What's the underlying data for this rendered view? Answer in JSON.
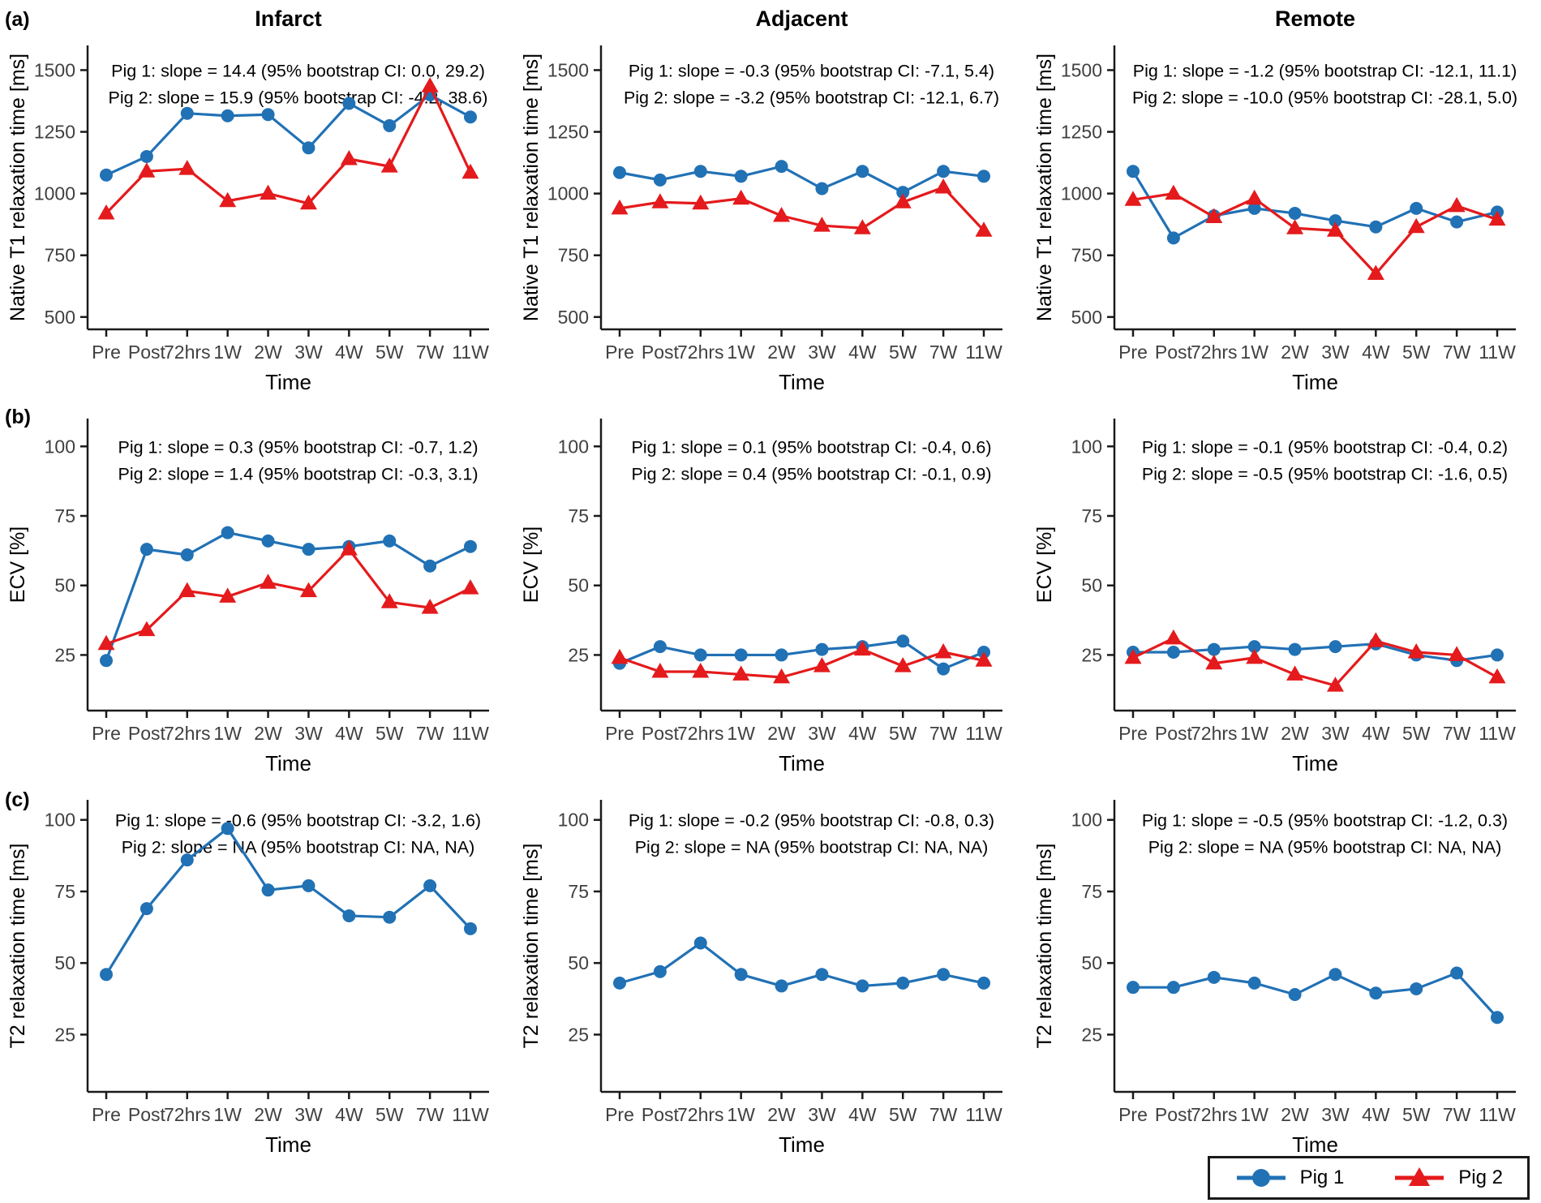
{
  "figure": {
    "panel_labels": [
      "(a)",
      "(b)",
      "(c)"
    ],
    "column_titles": [
      "Infarct",
      "Adjacent",
      "Remote"
    ],
    "colors": {
      "pig1_blue": "#2171B5",
      "pig2_red": "#E41A1C",
      "axis": "#1a1a1a",
      "tick_text": "#404040"
    },
    "legend": {
      "items": [
        {
          "label": "Pig 1",
          "marker": "circle",
          "color": "#2171B5"
        },
        {
          "label": "Pig 2",
          "marker": "triangle",
          "color": "#E41A1C"
        }
      ]
    }
  },
  "chart_data": {
    "type": "line",
    "categories": [
      "Pre",
      "Post",
      "72hrs",
      "1W",
      "2W",
      "3W",
      "4W",
      "5W",
      "7W",
      "11W"
    ],
    "xlabel": "Time",
    "grid": false,
    "charts": [
      {
        "panel": "a",
        "region": "Infarct",
        "title": "Infarct",
        "ylabel": "Native T1 relaxation time [ms]",
        "yticks": [
          500,
          750,
          1000,
          1250,
          1500
        ],
        "ylim": [
          450,
          1600
        ],
        "annotations": [
          "Pig 1: slope = 14.4 (95% bootstrap CI: 0.0, 29.2)",
          "Pig 2: slope = 15.9 (95% bootstrap CI: -4.2, 38.6)"
        ],
        "series": [
          {
            "name": "Pig 1",
            "marker": "circle",
            "color": "#2171B5",
            "values": [
              1075,
              1150,
              1325,
              1315,
              1320,
              1185,
              1365,
              1275,
              1400,
              1310
            ]
          },
          {
            "name": "Pig 2",
            "marker": "triangle",
            "color": "#E41A1C",
            "values": [
              920,
              1090,
              1100,
              970,
              1000,
              960,
              1140,
              1110,
              1435,
              1085
            ]
          }
        ]
      },
      {
        "panel": "a",
        "region": "Adjacent",
        "title": "Adjacent",
        "ylabel": "Native T1 relaxation time [ms]",
        "yticks": [
          500,
          750,
          1000,
          1250,
          1500
        ],
        "ylim": [
          450,
          1600
        ],
        "annotations": [
          "Pig 1: slope = -0.3 (95% bootstrap CI: -7.1, 5.4)",
          "Pig 2: slope = -3.2 (95% bootstrap CI: -12.1, 6.7)"
        ],
        "series": [
          {
            "name": "Pig 1",
            "marker": "circle",
            "color": "#2171B5",
            "values": [
              1085,
              1055,
              1090,
              1070,
              1110,
              1020,
              1090,
              1005,
              1090,
              1070
            ]
          },
          {
            "name": "Pig 2",
            "marker": "triangle",
            "color": "#E41A1C",
            "values": [
              940,
              965,
              960,
              980,
              910,
              870,
              860,
              965,
              1025,
              850
            ]
          }
        ]
      },
      {
        "panel": "a",
        "region": "Remote",
        "title": "Remote",
        "ylabel": "Native T1 relaxation time [ms]",
        "yticks": [
          500,
          750,
          1000,
          1250,
          1500
        ],
        "ylim": [
          450,
          1600
        ],
        "annotations": [
          "Pig 1: slope = -1.2 (95% bootstrap CI: -12.1, 11.1)",
          "Pig 2: slope = -10.0 (95% bootstrap CI: -28.1, 5.0)"
        ],
        "series": [
          {
            "name": "Pig 1",
            "marker": "circle",
            "color": "#2171B5",
            "values": [
              1090,
              820,
              910,
              940,
              920,
              890,
              865,
              940,
              885,
              925
            ]
          },
          {
            "name": "Pig 2",
            "marker": "triangle",
            "color": "#E41A1C",
            "values": [
              975,
              1000,
              905,
              980,
              860,
              850,
              675,
              865,
              950,
              895
            ]
          }
        ]
      },
      {
        "panel": "b",
        "region": "Infarct",
        "title": null,
        "ylabel": "ECV [%]",
        "yticks": [
          25,
          50,
          75,
          100
        ],
        "ylim": [
          5,
          110
        ],
        "annotations": [
          "Pig 1: slope = 0.3 (95% bootstrap CI: -0.7, 1.2)",
          "Pig 2: slope = 1.4 (95% bootstrap CI: -0.3, 3.1)"
        ],
        "series": [
          {
            "name": "Pig 1",
            "marker": "circle",
            "color": "#2171B5",
            "values": [
              23,
              63,
              61,
              69,
              66,
              63,
              64,
              66,
              57,
              64
            ]
          },
          {
            "name": "Pig 2",
            "marker": "triangle",
            "color": "#E41A1C",
            "values": [
              29,
              34,
              48,
              46,
              51,
              48,
              63,
              44,
              42,
              49
            ]
          }
        ]
      },
      {
        "panel": "b",
        "region": "Adjacent",
        "title": null,
        "ylabel": "ECV [%]",
        "yticks": [
          25,
          50,
          75,
          100
        ],
        "ylim": [
          5,
          110
        ],
        "annotations": [
          "Pig 1: slope = 0.1 (95% bootstrap CI: -0.4, 0.6)",
          "Pig 2: slope = 0.4 (95% bootstrap CI: -0.1, 0.9)"
        ],
        "series": [
          {
            "name": "Pig 1",
            "marker": "circle",
            "color": "#2171B5",
            "values": [
              22,
              28,
              25,
              25,
              25,
              27,
              28,
              30,
              20,
              26
            ]
          },
          {
            "name": "Pig 2",
            "marker": "triangle",
            "color": "#E41A1C",
            "values": [
              24,
              19,
              19,
              18,
              17,
              21,
              27,
              21,
              26,
              23
            ]
          }
        ]
      },
      {
        "panel": "b",
        "region": "Remote",
        "title": null,
        "ylabel": "ECV [%]",
        "yticks": [
          25,
          50,
          75,
          100
        ],
        "ylim": [
          5,
          110
        ],
        "annotations": [
          "Pig 1: slope = -0.1 (95% bootstrap CI: -0.4, 0.2)",
          "Pig 2: slope = -0.5 (95% bootstrap CI: -1.6, 0.5)"
        ],
        "series": [
          {
            "name": "Pig 1",
            "marker": "circle",
            "color": "#2171B5",
            "values": [
              26,
              26,
              27,
              28,
              27,
              28,
              29,
              25,
              23,
              25
            ]
          },
          {
            "name": "Pig 2",
            "marker": "triangle",
            "color": "#E41A1C",
            "values": [
              24,
              31,
              22,
              24,
              18,
              14,
              30,
              26,
              25,
              17
            ]
          }
        ]
      },
      {
        "panel": "c",
        "region": "Infarct",
        "title": null,
        "ylabel": "T2 relaxation time [ms]",
        "yticks": [
          25,
          50,
          75,
          100
        ],
        "ylim": [
          5,
          107
        ],
        "annotations": [
          "Pig 1: slope = -0.6 (95% bootstrap CI: -3.2, 1.6)",
          "Pig 2: slope = NA (95% bootstrap CI: NA, NA)"
        ],
        "series": [
          {
            "name": "Pig 1",
            "marker": "circle",
            "color": "#2171B5",
            "values": [
              46,
              69,
              86,
              97,
              75.5,
              77,
              66.5,
              66,
              77,
              62
            ]
          }
        ]
      },
      {
        "panel": "c",
        "region": "Adjacent",
        "title": null,
        "ylabel": "T2 relaxation time [ms]",
        "yticks": [
          25,
          50,
          75,
          100
        ],
        "ylim": [
          5,
          107
        ],
        "annotations": [
          "Pig 1: slope = -0.2 (95% bootstrap CI: -0.8, 0.3)",
          "Pig 2: slope = NA (95% bootstrap CI: NA, NA)"
        ],
        "series": [
          {
            "name": "Pig 1",
            "marker": "circle",
            "color": "#2171B5",
            "values": [
              43,
              47,
              57,
              46,
              42,
              46,
              42,
              43,
              46,
              43
            ]
          }
        ]
      },
      {
        "panel": "c",
        "region": "Remote",
        "title": null,
        "ylabel": "T2 relaxation time [ms]",
        "yticks": [
          25,
          50,
          75,
          100
        ],
        "ylim": [
          5,
          107
        ],
        "annotations": [
          "Pig 1: slope = -0.5 (95% bootstrap CI: -1.2, 0.3)",
          "Pig 2: slope = NA (95% bootstrap CI: NA, NA)"
        ],
        "series": [
          {
            "name": "Pig 1",
            "marker": "circle",
            "color": "#2171B5",
            "values": [
              41.5,
              41.5,
              45,
              43,
              39,
              46,
              39.5,
              41,
              46.5,
              31
            ]
          }
        ]
      }
    ]
  }
}
